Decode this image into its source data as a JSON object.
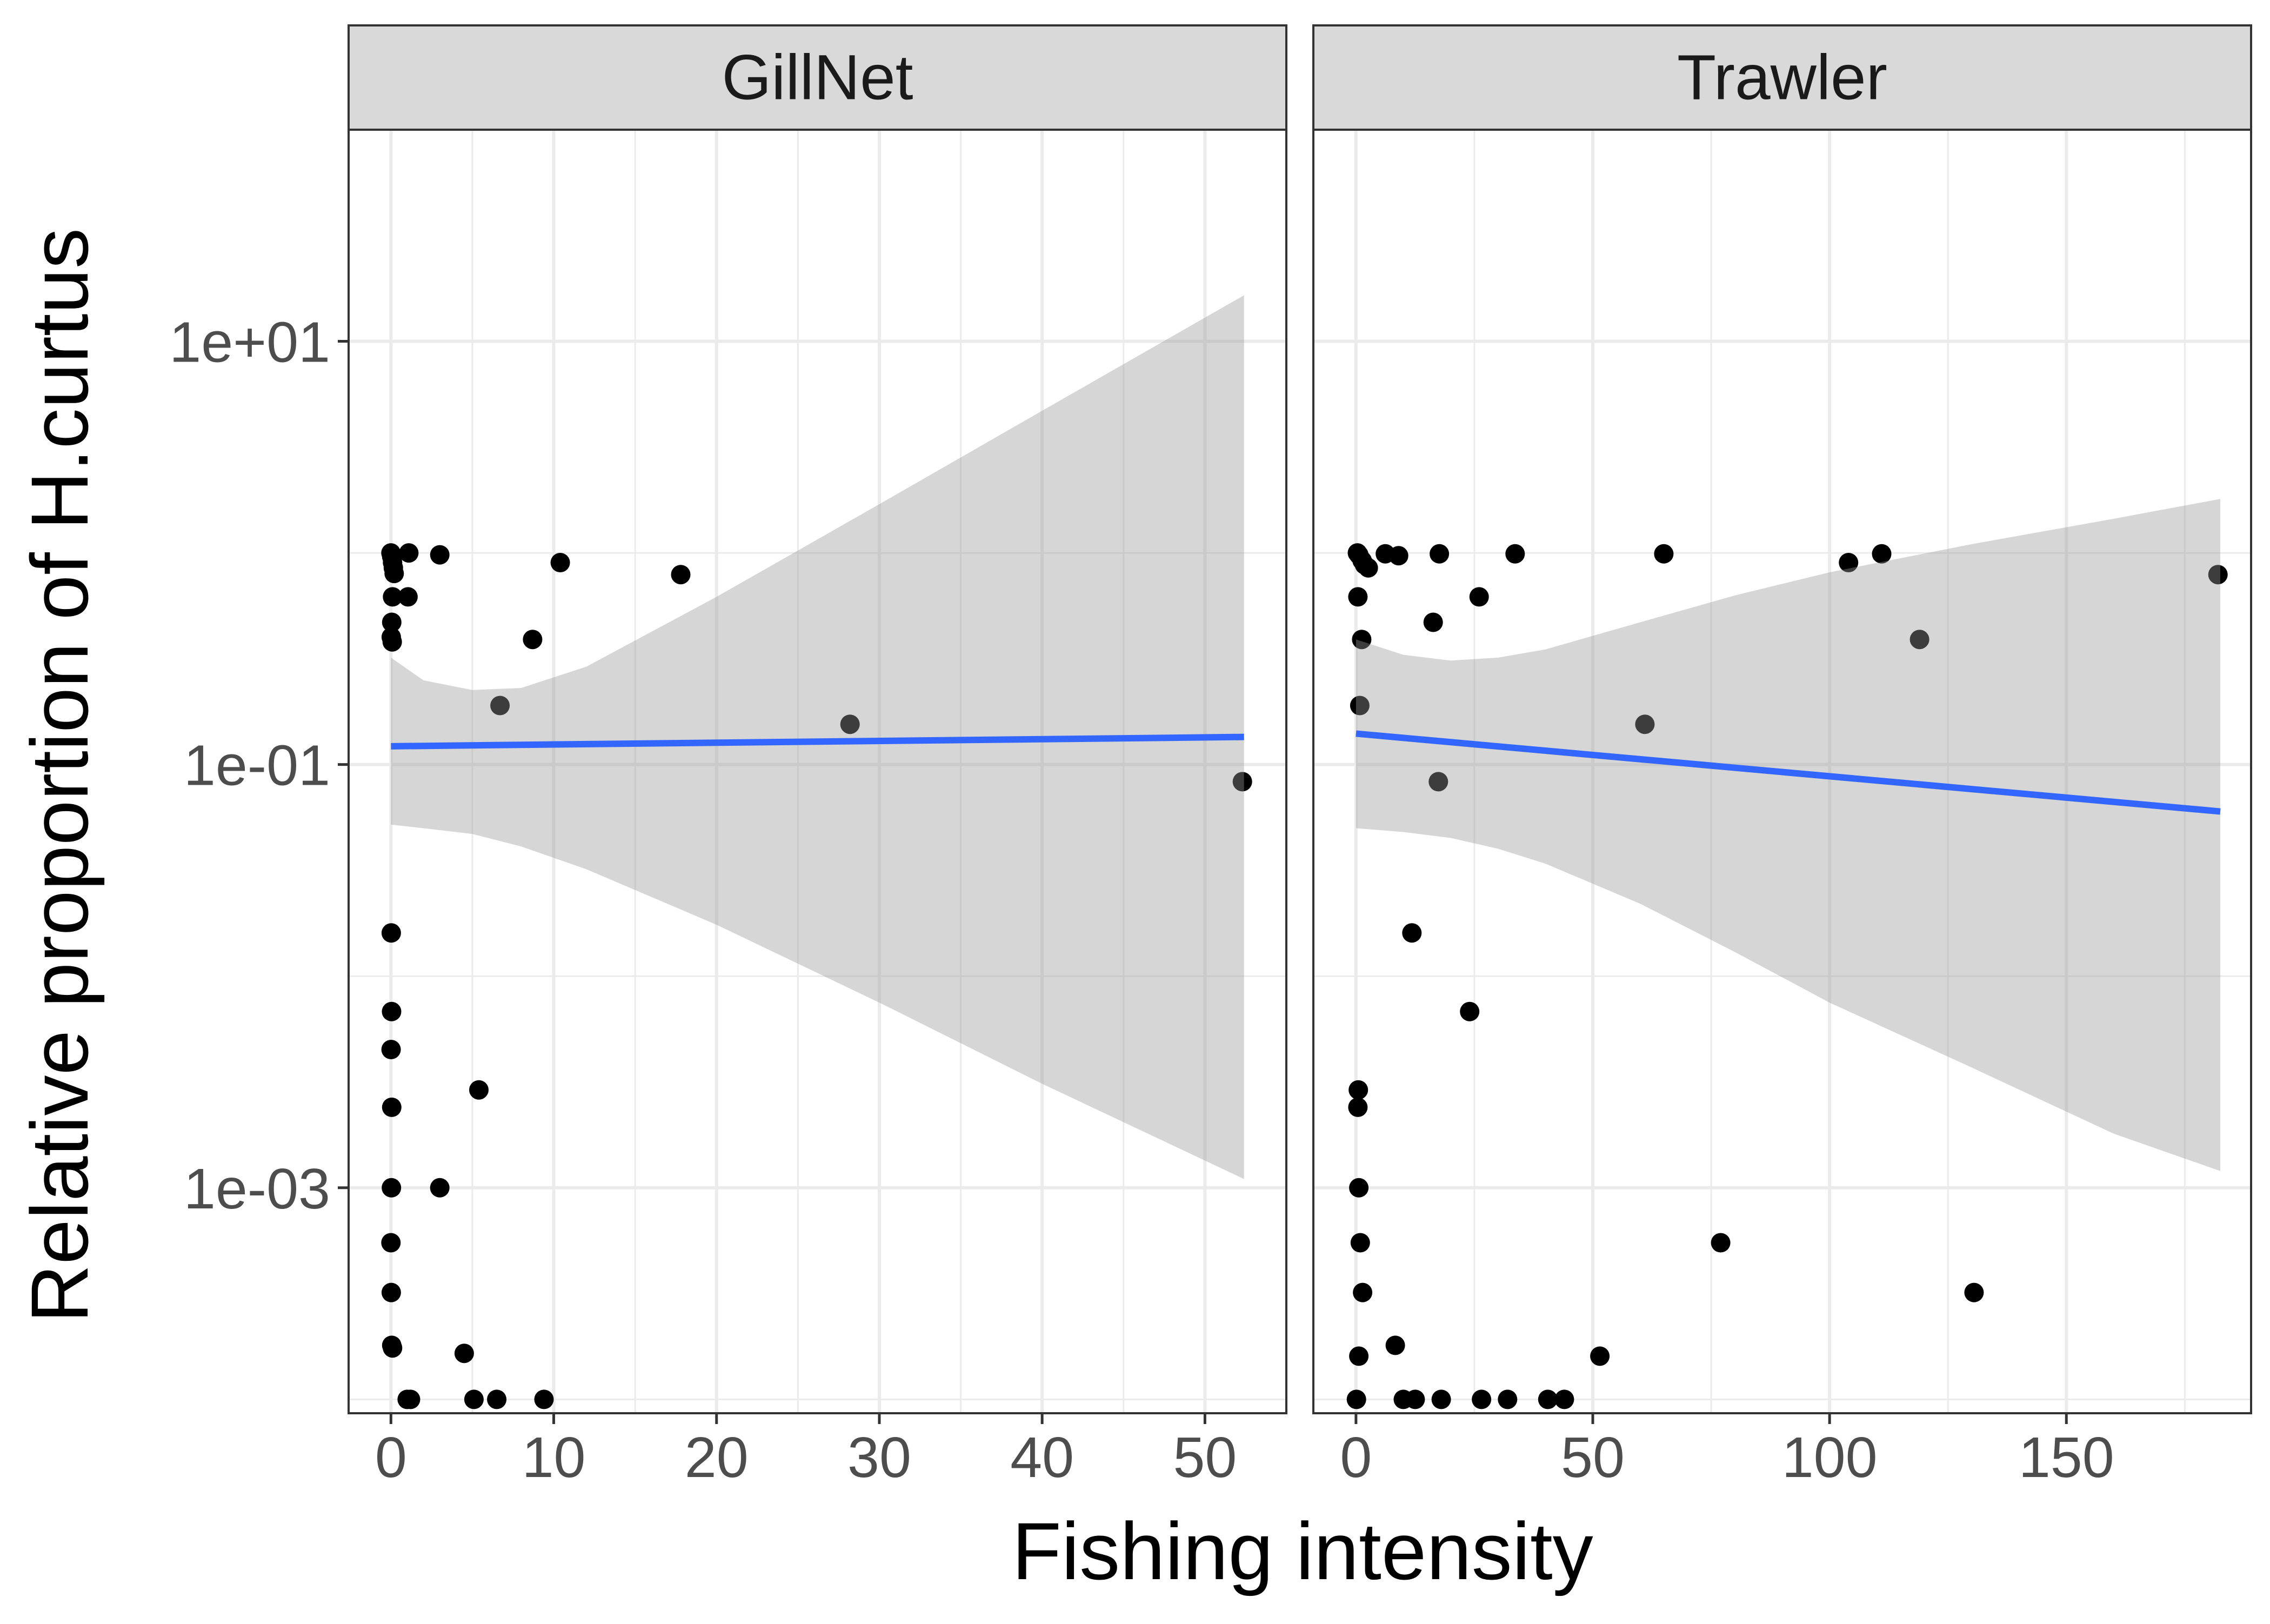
{
  "chart_data": {
    "type": "scatter",
    "facets": [
      {
        "label": "GillNet",
        "xlim": [
          -2.6,
          55.0
        ],
        "x_ticks": [
          0,
          10,
          20,
          30,
          40,
          50
        ],
        "x_tick_labels": [
          "0",
          "10",
          "20",
          "30",
          "40",
          "50"
        ],
        "fit_line": {
          "x": [
            0,
            52.4
          ],
          "y": [
            0.122,
            0.135
          ]
        },
        "confidence_band": {
          "x": [
            0,
            2,
            5,
            8,
            12,
            20,
            30,
            40,
            52.4
          ],
          "upper": [
            0.32,
            0.25,
            0.225,
            0.23,
            0.29,
            0.62,
            1.7,
            4.7,
            16.5
          ],
          "lower": [
            0.052,
            0.05,
            0.047,
            0.041,
            0.032,
            0.0175,
            0.0075,
            0.0031,
            0.0011
          ]
        },
        "points": {
          "x": [
            0,
            0.05,
            0.1,
            0.15,
            0.2,
            0.1,
            0.05,
            0.08,
            0.02,
            1.1,
            1.05,
            3.0,
            10.4,
            17.8,
            8.7,
            6.7,
            28.2,
            52.3,
            0.02,
            0.04,
            0.01,
            5.4,
            0.05,
            3.0,
            0.03,
            0.0,
            0.02,
            0.05,
            4.5,
            0.1,
            1.0,
            1.2,
            5.1,
            6.5,
            9.4
          ],
          "y": [
            1.0,
            0.96,
            0.9,
            0.85,
            0.8,
            0.62,
            0.47,
            0.38,
            0.4,
            1.0,
            0.62,
            0.98,
            0.9,
            0.79,
            0.39,
            0.19,
            0.155,
            0.083,
            0.016,
            0.0068,
            0.0045,
            0.0029,
            0.0024,
            0.001,
            0.001,
            0.00055,
            0.00032,
            0.00018,
            0.000165,
            0.000175,
            0.0001,
            0.0001,
            0.0001,
            0.0001,
            0.0001
          ]
        }
      },
      {
        "label": "Trawler",
        "xlim": [
          -9.0,
          189.0
        ],
        "x_ticks": [
          0,
          50,
          100,
          150
        ],
        "x_tick_labels": [
          "0",
          "50",
          "100",
          "150"
        ],
        "fit_line": {
          "x": [
            0,
            182.5
          ],
          "y": [
            0.14,
            0.06
          ]
        },
        "confidence_band": {
          "x": [
            0,
            10,
            20,
            30,
            40,
            60,
            80,
            100,
            130,
            160,
            182.5
          ],
          "upper": [
            0.39,
            0.33,
            0.31,
            0.32,
            0.35,
            0.47,
            0.63,
            0.81,
            1.1,
            1.45,
            1.8
          ],
          "lower": [
            0.05,
            0.048,
            0.045,
            0.04,
            0.034,
            0.022,
            0.013,
            0.0075,
            0.0037,
            0.0018,
            0.0012
          ]
        },
        "points": {
          "x": [
            0.3,
            0.6,
            1.3,
            1.8,
            2.6,
            6.2,
            9.0,
            17.6,
            33.6,
            65.0,
            104.0,
            111.0,
            182.0,
            0.4,
            16.3,
            26.0,
            1.2,
            119.0,
            0.8,
            61.0,
            17.4,
            11.8,
            24.0,
            0.5,
            0.4,
            0.6,
            0.9,
            1.4,
            77.0,
            130.5,
            0.6,
            8.3,
            51.5,
            0.1,
            10.0,
            12.5,
            18.0,
            26.5,
            32.0,
            40.5,
            44.0
          ],
          "y": [
            1.0,
            0.98,
            0.92,
            0.88,
            0.85,
            0.99,
            0.97,
            0.99,
            0.99,
            0.99,
            0.9,
            0.99,
            0.79,
            0.62,
            0.47,
            0.62,
            0.39,
            0.39,
            0.19,
            0.155,
            0.083,
            0.016,
            0.0068,
            0.0029,
            0.0024,
            0.001,
            0.00055,
            0.00032,
            0.00055,
            0.00032,
            0.00016,
            0.00018,
            0.00016,
            0.0001,
            0.0001,
            0.0001,
            0.0001,
            0.0001,
            0.0001,
            0.0001,
            0.0001
          ]
        }
      }
    ],
    "y_scale": "log10",
    "ylim": [
      8.6e-05,
      100
    ],
    "y_ticks": [
      0.001,
      0.1,
      10
    ],
    "y_tick_labels": [
      "1e-03",
      "1e-01",
      "1e+01"
    ],
    "xlabel": "Fishing intensity",
    "ylabel": "Relative proportion of H.curtus",
    "grid": true,
    "legend": "none"
  },
  "colors": {
    "point": "#000000",
    "fit_line": "#3366ff",
    "band_fill": "#999999",
    "strip_fill": "#d9d9d9",
    "grid": "#ebebeb",
    "border": "#333333"
  }
}
